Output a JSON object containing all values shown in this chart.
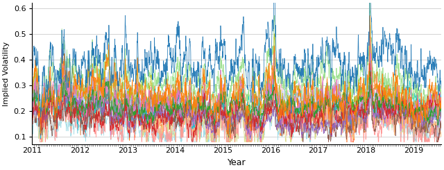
{
  "title": "",
  "xlabel": "Year",
  "ylabel": "Implied Volatility",
  "xlim_start": 2011.0,
  "xlim_end": 2019.58,
  "ylim": [
    0.07,
    0.62
  ],
  "yticks": [
    0.1,
    0.2,
    0.3,
    0.4,
    0.5,
    0.6
  ],
  "xticks": [
    2011,
    2012,
    2013,
    2014,
    2015,
    2016,
    2017,
    2018,
    2019
  ],
  "figsize": [
    6.4,
    2.45
  ],
  "dpi": 100,
  "n_series": 22,
  "n_points": 2200,
  "seed": 12345,
  "line_width": 0.55,
  "colors": [
    "#1f77b4",
    "#ff7f0e",
    "#2ca02c",
    "#d62728",
    "#9467bd",
    "#8c564b",
    "#e377c2",
    "#7f7f7f",
    "#bcbd22",
    "#17becf",
    "#aec7e8",
    "#ffbb78",
    "#98df8a",
    "#ff9896",
    "#c5b0d5",
    "#c49c94",
    "#f7b6d2",
    "#c7c7c7",
    "#dbdb8d",
    "#9edae5",
    "#ff6600",
    "#00ced1"
  ],
  "base_levels": [
    0.33,
    0.25,
    0.21,
    0.185,
    0.17,
    0.15,
    0.23,
    0.2,
    0.255,
    0.195,
    0.215,
    0.175,
    0.27,
    0.155,
    0.225,
    0.185,
    0.245,
    0.205,
    0.165,
    0.135,
    0.19,
    0.22
  ],
  "grid_color": "#cccccc",
  "grid_linestyle": "-",
  "bg_color": "#ffffff",
  "tick_dot_color": "#888888"
}
